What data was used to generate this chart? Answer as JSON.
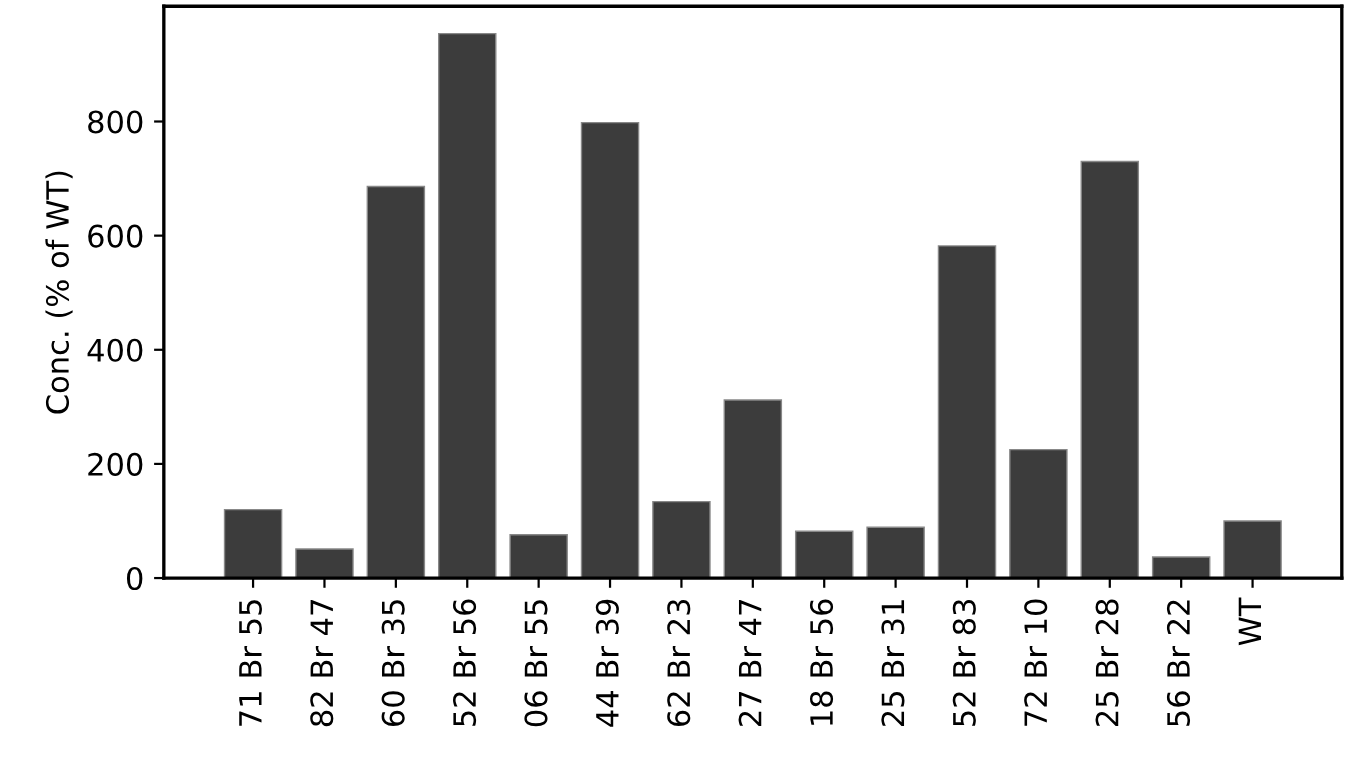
{
  "chart_data": {
    "type": "bar",
    "ylabel": "Conc. (% of WT)",
    "categories": [
      "71 Br 55",
      "82 Br 47",
      "60 Br 35",
      "52 Br 56",
      "06 Br 55",
      "44 Br 39",
      "62 Br 23",
      "27 Br 47",
      "18 Br 56",
      "25 Br 31",
      "52 Br 83",
      "72 Br 10",
      "25 Br 28",
      "56 Br 22",
      "WT"
    ],
    "values": [
      120,
      51,
      686,
      954,
      76,
      798,
      134,
      312,
      82,
      89,
      582,
      225,
      730,
      37,
      100
    ],
    "color": "#3c3c3c",
    "ylim": [
      0,
      1002
    ],
    "yticks": [
      0,
      200,
      400,
      600,
      800
    ],
    "grid": false,
    "legend": false
  }
}
